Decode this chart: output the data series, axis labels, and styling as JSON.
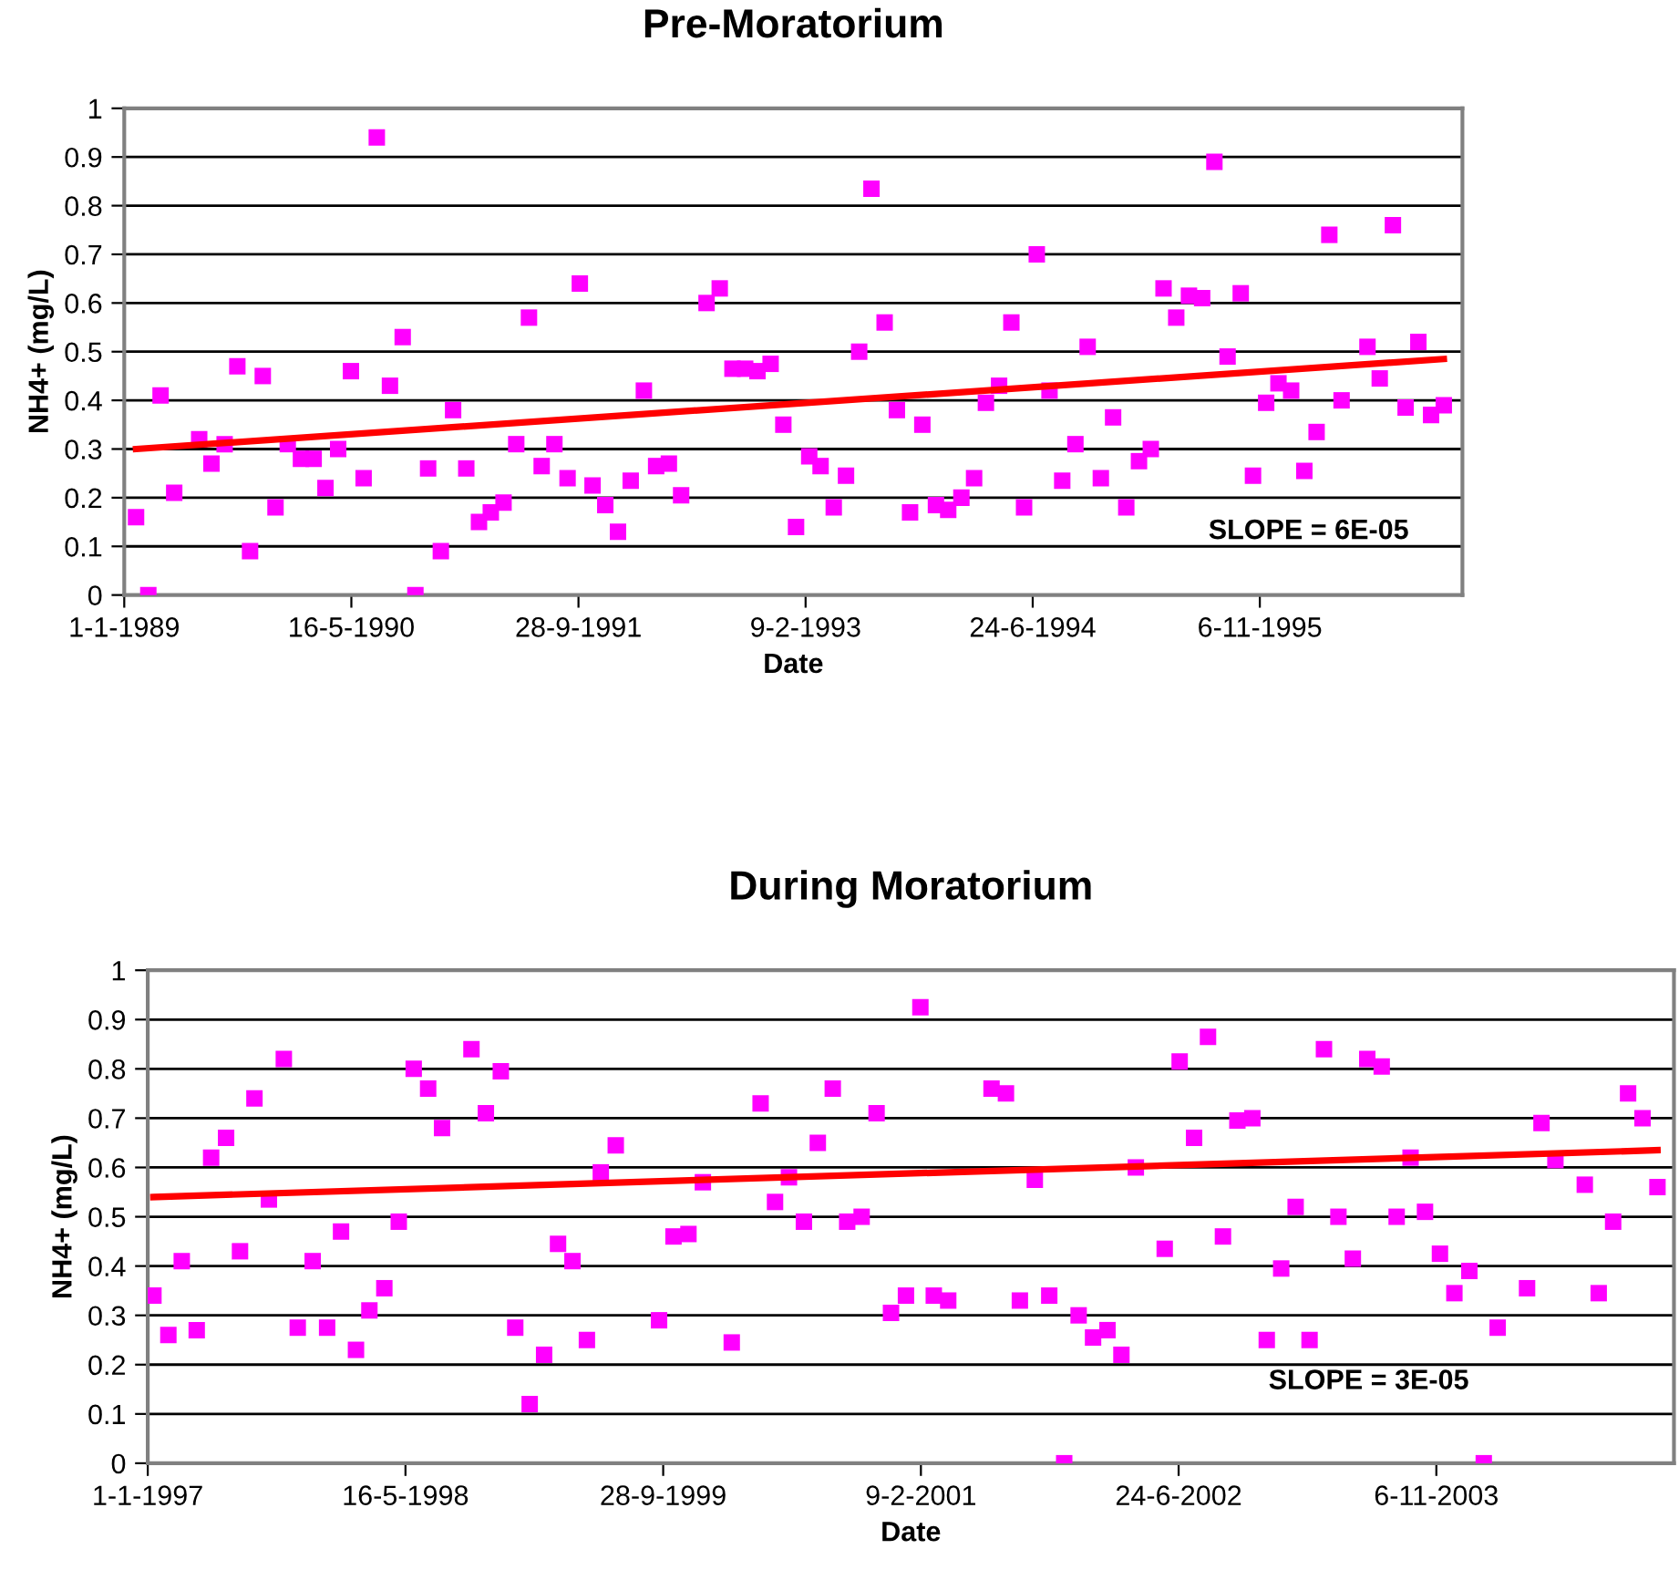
{
  "chart_data": [
    {
      "type": "scatter",
      "title": "Pre-Moratorium",
      "xlabel": "Date",
      "ylabel": "NH4+ (mg/L)",
      "annotations": [
        "SLOPE = 6E-05"
      ],
      "grid": "y",
      "xlim": [
        "1989-01-01",
        "1997-01-25"
      ],
      "ylim": [
        0,
        1
      ],
      "xticks": [
        {
          "value": "1989-01-01",
          "label": "1-1-1989"
        },
        {
          "value": "1990-05-16",
          "label": "16-5-1990"
        },
        {
          "value": "1991-09-28",
          "label": "28-9-1991"
        },
        {
          "value": "1993-02-09",
          "label": "9-2-1993"
        },
        {
          "value": "1994-06-24",
          "label": "24-6-1994"
        },
        {
          "value": "1995-11-06",
          "label": "6-11-1995"
        }
      ],
      "yticks": [
        0,
        0.1,
        0.2,
        0.3,
        0.4,
        0.5,
        0.6,
        0.7,
        0.8,
        0.9,
        1
      ],
      "series": [
        {
          "color": "#ff00ff",
          "marker": "square",
          "x": [
            "1989-01-27",
            "1989-02-23",
            "1989-03-22",
            "1989-04-21",
            "1989-06-15",
            "1989-07-12",
            "1989-08-10",
            "1989-09-07",
            "1989-10-05",
            "1989-11-02",
            "1989-11-30",
            "1989-12-27",
            "1990-01-25",
            "1990-02-22",
            "1990-03-20",
            "1990-04-17",
            "1990-05-15",
            "1990-06-12",
            "1990-07-11",
            "1990-08-09",
            "1990-09-06",
            "1990-10-04",
            "1990-11-01",
            "1990-11-29",
            "1990-12-26",
            "1991-01-24",
            "1991-02-21",
            "1991-03-19",
            "1991-04-16",
            "1991-05-14",
            "1991-06-11",
            "1991-07-09",
            "1991-08-06",
            "1991-09-04",
            "1991-10-01",
            "1991-10-29",
            "1991-11-26",
            "1991-12-24",
            "1992-01-21",
            "1992-02-19",
            "1992-03-17",
            "1992-04-14",
            "1992-05-11",
            "1992-07-06",
            "1992-08-04",
            "1992-09-01",
            "1992-09-29",
            "1992-10-26",
            "1992-11-24",
            "1992-12-22",
            "1993-01-19",
            "1993-02-17",
            "1993-03-14",
            "1993-04-12",
            "1993-05-09",
            "1993-06-07",
            "1993-07-04",
            "1993-08-02",
            "1993-08-29",
            "1993-09-27",
            "1993-10-24",
            "1993-11-23",
            "1993-12-20",
            "1994-01-18",
            "1994-02-15",
            "1994-03-13",
            "1994-04-11",
            "1994-05-08",
            "1994-06-05",
            "1994-07-03",
            "1994-07-31",
            "1994-08-28",
            "1994-09-26",
            "1994-10-23",
            "1994-11-21",
            "1994-12-18",
            "1995-01-16",
            "1995-02-13",
            "1995-03-11",
            "1995-04-08",
            "1995-05-06",
            "1995-06-03",
            "1995-07-02",
            "1995-07-29",
            "1995-08-27",
            "1995-09-25",
            "1995-10-22",
            "1995-11-20",
            "1995-12-17",
            "1996-01-14",
            "1996-02-12",
            "1996-03-10",
            "1996-04-07",
            "1996-05-04",
            "1996-06-30",
            "1996-07-27",
            "1996-08-25",
            "1996-09-22",
            "1996-10-20",
            "1996-11-17",
            "1996-12-15"
          ],
          "values": [
            0.16,
            0,
            0.41,
            0.21,
            0.32,
            0.27,
            0.31,
            0.47,
            0.09,
            0.45,
            0.18,
            0.31,
            0.28,
            0.28,
            0.22,
            0.3,
            0.46,
            0.24,
            0.94,
            0.43,
            0.53,
            0,
            0.26,
            0.09,
            0.38,
            0.26,
            0.15,
            0.17,
            0.19,
            0.31,
            0.57,
            0.265,
            0.31,
            0.24,
            0.64,
            0.225,
            0.185,
            0.13,
            0.235,
            0.42,
            0.265,
            0.27,
            0.205,
            0.6,
            0.63,
            0.465,
            0.465,
            0.46,
            0.475,
            0.35,
            0.14,
            0.285,
            0.265,
            0.18,
            0.245,
            0.5,
            0.835,
            0.56,
            0.38,
            0.17,
            0.35,
            0.185,
            0.175,
            0.2,
            0.24,
            0.395,
            0.43,
            0.56,
            0.18,
            0.7,
            0.42,
            0.235,
            0.31,
            0.51,
            0.24,
            0.365,
            0.18,
            0.275,
            0.3,
            0.63,
            0.57,
            0.615,
            0.61,
            0.89,
            0.49,
            0.62,
            0.245,
            0.395,
            0.435,
            0.42,
            0.255,
            0.335,
            0.74,
            0.4,
            0.51,
            0.445,
            0.76,
            0.385,
            0.52,
            0.37,
            0.39
          ]
        },
        {
          "type": "line",
          "color": "#ff0000",
          "marker": "none",
          "x": [
            "1989-01-27",
            "1996-12-15"
          ],
          "values": [
            0.3,
            0.485
          ]
        }
      ]
    },
    {
      "type": "scatter",
      "title": "During Moratorium",
      "xlabel": "Date",
      "ylabel": "NH4+ (mg/L)",
      "annotations": [
        "SLOPE = 3E-05"
      ],
      "grid": "y",
      "xlim": [
        "1997-01-01",
        "2005-02-09"
      ],
      "ylim": [
        0,
        1
      ],
      "xticks": [
        {
          "value": "1997-01-01",
          "label": "1-1-1997"
        },
        {
          "value": "1998-05-16",
          "label": "16-5-1998"
        },
        {
          "value": "1999-09-28",
          "label": "28-9-1999"
        },
        {
          "value": "2001-02-09",
          "label": "9-2-2001"
        },
        {
          "value": "2002-06-24",
          "label": "24-6-2002"
        },
        {
          "value": "2003-11-06",
          "label": "6-11-2003"
        }
      ],
      "yticks": [
        0,
        0.1,
        0.2,
        0.3,
        0.4,
        0.5,
        0.6,
        0.7,
        0.8,
        0.9,
        1
      ],
      "series": [
        {
          "color": "#ff00ff",
          "marker": "square",
          "x": [
            "1997-01-12",
            "1997-02-10",
            "1997-03-08",
            "1997-04-06",
            "1997-05-04",
            "1997-06-02",
            "1997-06-29",
            "1997-07-27",
            "1997-08-24",
            "1997-09-22",
            "1997-10-19",
            "1997-11-17",
            "1997-12-15",
            "1998-01-11",
            "1998-02-09",
            "1998-03-07",
            "1998-04-05",
            "1998-05-03",
            "1998-06-01",
            "1998-06-29",
            "1998-07-26",
            "1998-09-21",
            "1998-10-19",
            "1998-11-17",
            "1998-12-15",
            "1999-01-12",
            "1999-02-09",
            "1999-03-08",
            "1999-04-05",
            "1999-05-03",
            "1999-05-30",
            "1999-06-28",
            "1999-09-20",
            "1999-10-18",
            "1999-11-16",
            "1999-12-14",
            "2000-02-08",
            "2000-04-04",
            "2000-05-02",
            "2000-05-29",
            "2000-06-27",
            "2000-07-24",
            "2000-08-22",
            "2000-09-19",
            "2000-10-17",
            "2000-11-15",
            "2000-12-13",
            "2001-01-11",
            "2001-02-08",
            "2001-03-06",
            "2001-04-03",
            "2001-06-26",
            "2001-07-24",
            "2001-08-20",
            "2001-09-18",
            "2001-10-16",
            "2001-11-14",
            "2001-12-12",
            "2002-01-09",
            "2002-02-06",
            "2002-03-05",
            "2002-04-02",
            "2002-05-28",
            "2002-06-26",
            "2002-07-24",
            "2002-08-20",
            "2002-09-18",
            "2002-10-16",
            "2002-11-14",
            "2002-12-12",
            "2003-01-09",
            "2003-02-06",
            "2003-03-05",
            "2003-04-02",
            "2003-04-30",
            "2003-05-28",
            "2003-06-25",
            "2003-07-23",
            "2003-08-21",
            "2003-09-17",
            "2003-10-15",
            "2003-11-13",
            "2003-12-11",
            "2004-01-09",
            "2004-02-06",
            "2004-03-04",
            "2004-04-30",
            "2004-05-28",
            "2004-06-24",
            "2004-08-20",
            "2004-09-16",
            "2004-10-14",
            "2004-11-12",
            "2004-12-10",
            "2005-01-08"
          ],
          "values": [
            0.34,
            0.26,
            0.41,
            0.27,
            0.62,
            0.66,
            0.43,
            0.74,
            0.535,
            0.82,
            0.275,
            0.41,
            0.275,
            0.47,
            0.23,
            0.31,
            0.355,
            0.49,
            0.8,
            0.76,
            0.68,
            0.84,
            0.71,
            0.795,
            0.275,
            0.12,
            0.22,
            0.445,
            0.41,
            0.25,
            0.59,
            0.645,
            0.29,
            0.46,
            0.465,
            0.57,
            0.245,
            0.73,
            0.53,
            0.58,
            0.49,
            0.65,
            0.76,
            0.49,
            0.5,
            0.71,
            0.305,
            0.34,
            0.925,
            0.34,
            0.33,
            0.76,
            0.75,
            0.33,
            0.575,
            0.34,
            0,
            0.3,
            0.255,
            0.27,
            0.22,
            0.6,
            0.435,
            0.815,
            0.66,
            0.865,
            0.46,
            0.695,
            0.7,
            0.25,
            0.395,
            0.52,
            0.25,
            0.84,
            0.5,
            0.415,
            0.82,
            0.805,
            0.5,
            0.62,
            0.51,
            0.425,
            0.345,
            0.39,
            0,
            0.275,
            0.355,
            0.69,
            0.615,
            0.565,
            0.345,
            0.49,
            0.75,
            0.7,
            0.56
          ]
        },
        {
          "type": "line",
          "color": "#ff0000",
          "marker": "none",
          "x": [
            "1997-01-12",
            "2005-01-08"
          ],
          "values": [
            0.54,
            0.635
          ]
        }
      ]
    }
  ]
}
